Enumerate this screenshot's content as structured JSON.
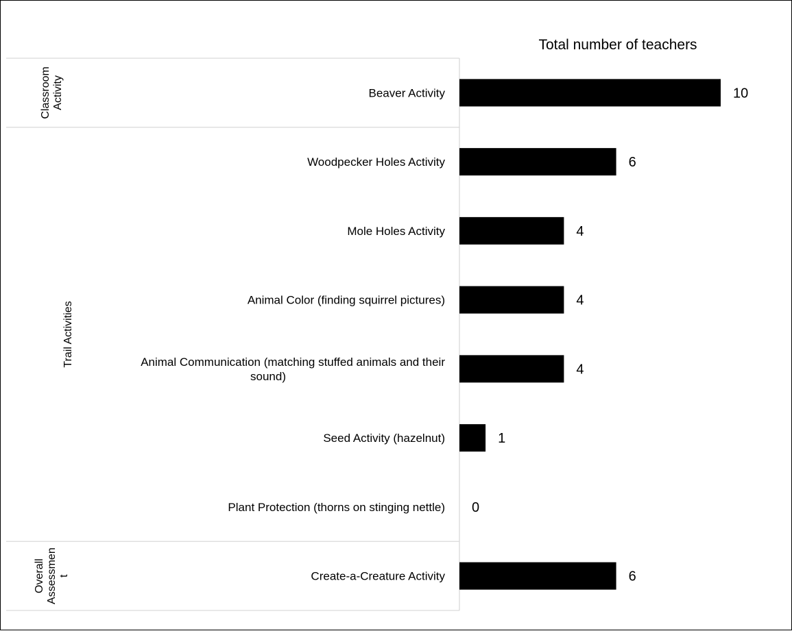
{
  "chart_data": {
    "type": "bar",
    "orientation": "horizontal",
    "title": "Total number of teachers",
    "groups": [
      {
        "name": "Classroom Activity",
        "lines": [
          "Classroom",
          "Activity"
        ],
        "categories": [
          "Beaver Activity"
        ]
      },
      {
        "name": "Trail Activities",
        "lines": [
          "Trail Activities"
        ],
        "categories": [
          "Woodpecker Holes Activity",
          "Mole Holes Activity",
          "Animal Color (finding squirrel pictures)",
          "Animal Communication (matching stuffed animals and their sound)",
          "Seed Activity (hazelnut)",
          "Plant Protection (thorns on stinging nettle)"
        ]
      },
      {
        "name": "Overall Assessment",
        "lines": [
          "Overall",
          "Assessmen",
          "t"
        ],
        "categories": [
          "Create-a-Creature Activity"
        ]
      }
    ],
    "categories": [
      "Beaver Activity",
      "Woodpecker Holes Activity",
      "Mole Holes Activity",
      "Animal Color (finding squirrel pictures)",
      "Animal Communication (matching stuffed animals and their sound)",
      "Seed Activity (hazelnut)",
      "Plant Protection (thorns on stinging nettle)",
      "Create-a-Creature Activity"
    ],
    "category_lines": [
      [
        "Beaver Activity"
      ],
      [
        "Woodpecker Holes Activity"
      ],
      [
        "Mole Holes Activity"
      ],
      [
        "Animal Color (finding squirrel pictures)"
      ],
      [
        "Animal Communication (matching stuffed animals and their",
        "sound)"
      ],
      [
        "Seed Activity (hazelnut)"
      ],
      [
        "Plant Protection (thorns on stinging nettle)"
      ],
      [
        "Create-a-Creature Activity"
      ]
    ],
    "values": [
      10,
      6,
      4,
      4,
      4,
      1,
      0,
      6
    ],
    "xlim": [
      0,
      10
    ],
    "bar_color": "#000000",
    "grid": false,
    "legend": "none",
    "data_labels": true
  }
}
